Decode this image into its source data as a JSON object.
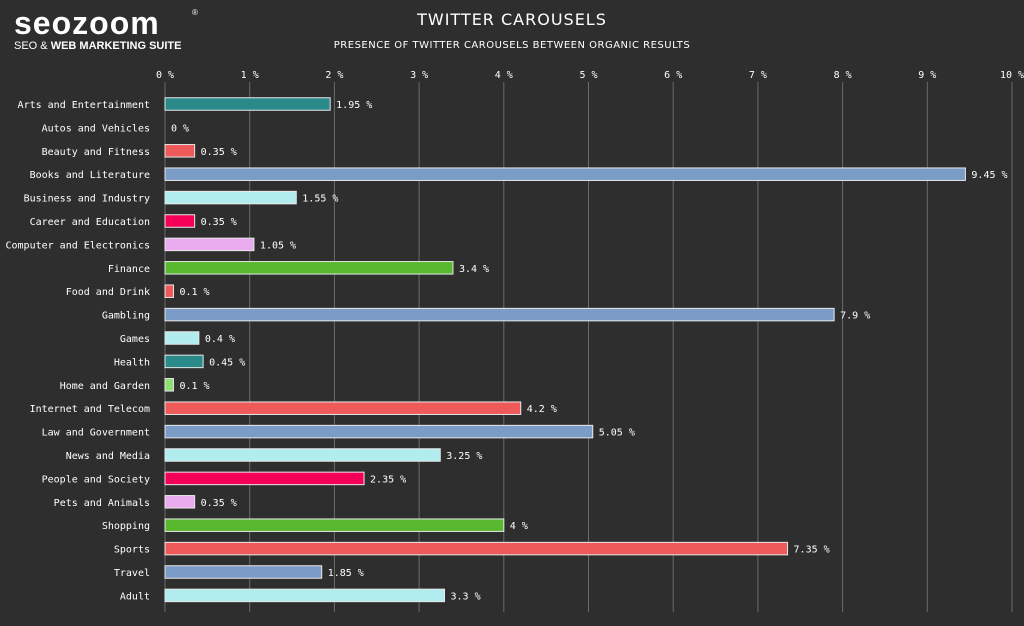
{
  "brand": {
    "name": "seozoom",
    "registered": "®",
    "tagline_prefix": "SEO & ",
    "tagline_bold": "WEB MARKETING SUITE"
  },
  "chart_data": {
    "type": "bar",
    "orientation": "horizontal",
    "title": "TWITTER CAROUSELS",
    "subtitle": "PRESENCE OF TWITTER CAROUSELS BETWEEN ORGANIC RESULTS",
    "xlabel": "",
    "ylabel": "",
    "xlim": [
      0,
      10
    ],
    "x_ticks": [
      0,
      1,
      2,
      3,
      4,
      5,
      6,
      7,
      8,
      9,
      10
    ],
    "x_tick_suffix": " %",
    "value_suffix": " %",
    "grid": true,
    "categories": [
      "Arts and Entertainment",
      "Autos and Vehicles",
      "Beauty and Fitness",
      "Books and Literature",
      "Business and Industry",
      "Career and Education",
      "Computer and Electronics",
      "Finance",
      "Food and Drink",
      "Gambling",
      "Games",
      "Health",
      "Home and Garden",
      "Internet and Telecom",
      "Law and Government",
      "News and Media",
      "People and Society",
      "Pets and Animals",
      "Shopping",
      "Sports",
      "Travel",
      "Adult"
    ],
    "values": [
      1.95,
      0,
      0.35,
      9.45,
      1.55,
      0.35,
      1.05,
      3.4,
      0.1,
      7.9,
      0.4,
      0.45,
      0.1,
      4.2,
      5.05,
      3.25,
      2.35,
      0.35,
      4,
      7.35,
      1.85,
      3.3
    ],
    "value_labels": [
      "1.95",
      "0",
      "0.35",
      "9.45",
      "1.55",
      "0.35",
      "1.05",
      "3.4",
      "0.1",
      "7.9",
      "0.4",
      "0.45",
      "0.1",
      "4.2",
      "5.05",
      "3.25",
      "2.35",
      "0.35",
      "4",
      "7.35",
      "1.85",
      "3.3"
    ],
    "colors": [
      "#2a8a8a",
      "#bb2b2b",
      "#ee5a5a",
      "#7b9cc6",
      "#b1ecee",
      "#f50059",
      "#eaabef",
      "#59b82e",
      "#ee5a5a",
      "#7b9cc6",
      "#b1ecee",
      "#2a8a8a",
      "#8ce072",
      "#ee5a5a",
      "#7b9cc6",
      "#b1ecee",
      "#f50059",
      "#eaabef",
      "#59b82e",
      "#ee5a5a",
      "#7b9cc6",
      "#b1ecee"
    ],
    "gridline_color": "#6b6b6b",
    "bar_border_color": "#e8e8e8"
  }
}
